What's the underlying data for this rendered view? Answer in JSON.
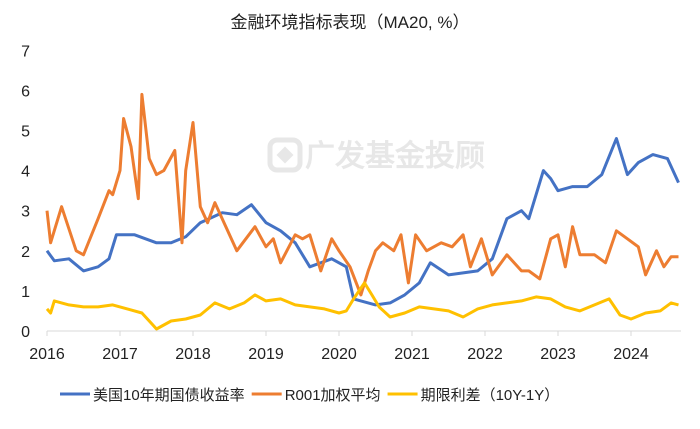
{
  "chart_data": {
    "type": "line",
    "title": "金融环境指标表现（MA20, %）",
    "watermark": "广发基金投顾",
    "xlabel": "",
    "ylabel": "",
    "xlim": [
      2016,
      2024.7
    ],
    "ylim": [
      0,
      7
    ],
    "x_ticks": [
      "2016",
      "2017",
      "2018",
      "2019",
      "2020",
      "2021",
      "2022",
      "2023",
      "2024"
    ],
    "y_ticks": [
      "0",
      "1",
      "2",
      "3",
      "4",
      "5",
      "6",
      "7"
    ],
    "grid": false,
    "legend_position": "bottom",
    "series": [
      {
        "name": "美国10年期国债收益率",
        "color": "#4472C4",
        "points": [
          [
            2016.0,
            2.0
          ],
          [
            2016.1,
            1.75
          ],
          [
            2016.3,
            1.8
          ],
          [
            2016.5,
            1.5
          ],
          [
            2016.7,
            1.6
          ],
          [
            2016.85,
            1.8
          ],
          [
            2016.95,
            2.4
          ],
          [
            2017.2,
            2.4
          ],
          [
            2017.5,
            2.2
          ],
          [
            2017.7,
            2.2
          ],
          [
            2017.9,
            2.35
          ],
          [
            2018.1,
            2.7
          ],
          [
            2018.4,
            2.95
          ],
          [
            2018.6,
            2.9
          ],
          [
            2018.8,
            3.15
          ],
          [
            2019.0,
            2.7
          ],
          [
            2019.2,
            2.5
          ],
          [
            2019.4,
            2.2
          ],
          [
            2019.6,
            1.6
          ],
          [
            2019.9,
            1.8
          ],
          [
            2020.1,
            1.6
          ],
          [
            2020.2,
            0.8
          ],
          [
            2020.5,
            0.65
          ],
          [
            2020.7,
            0.7
          ],
          [
            2020.9,
            0.9
          ],
          [
            2021.1,
            1.2
          ],
          [
            2021.25,
            1.7
          ],
          [
            2021.5,
            1.4
          ],
          [
            2021.7,
            1.45
          ],
          [
            2021.9,
            1.5
          ],
          [
            2022.1,
            1.8
          ],
          [
            2022.3,
            2.8
          ],
          [
            2022.5,
            3.0
          ],
          [
            2022.6,
            2.8
          ],
          [
            2022.8,
            4.0
          ],
          [
            2022.9,
            3.8
          ],
          [
            2023.0,
            3.5
          ],
          [
            2023.2,
            3.6
          ],
          [
            2023.4,
            3.6
          ],
          [
            2023.6,
            3.9
          ],
          [
            2023.8,
            4.8
          ],
          [
            2023.95,
            3.9
          ],
          [
            2024.1,
            4.2
          ],
          [
            2024.3,
            4.4
          ],
          [
            2024.5,
            4.3
          ],
          [
            2024.65,
            3.7
          ]
        ]
      },
      {
        "name": "R001加权平均",
        "color": "#ED7D31",
        "points": [
          [
            2016.0,
            3.0
          ],
          [
            2016.05,
            2.2
          ],
          [
            2016.2,
            3.1
          ],
          [
            2016.4,
            2.0
          ],
          [
            2016.5,
            1.9
          ],
          [
            2016.7,
            2.8
          ],
          [
            2016.85,
            3.5
          ],
          [
            2016.9,
            3.4
          ],
          [
            2017.0,
            4.0
          ],
          [
            2017.05,
            5.3
          ],
          [
            2017.15,
            4.6
          ],
          [
            2017.25,
            3.3
          ],
          [
            2017.3,
            5.9
          ],
          [
            2017.4,
            4.3
          ],
          [
            2017.5,
            3.9
          ],
          [
            2017.6,
            4.0
          ],
          [
            2017.75,
            4.5
          ],
          [
            2017.85,
            2.2
          ],
          [
            2017.9,
            4.0
          ],
          [
            2018.0,
            5.2
          ],
          [
            2018.1,
            3.1
          ],
          [
            2018.2,
            2.7
          ],
          [
            2018.3,
            3.2
          ],
          [
            2018.5,
            2.4
          ],
          [
            2018.6,
            2.0
          ],
          [
            2018.85,
            2.6
          ],
          [
            2019.0,
            2.1
          ],
          [
            2019.1,
            2.3
          ],
          [
            2019.2,
            1.7
          ],
          [
            2019.4,
            2.4
          ],
          [
            2019.5,
            2.3
          ],
          [
            2019.6,
            2.4
          ],
          [
            2019.75,
            1.5
          ],
          [
            2019.9,
            2.3
          ],
          [
            2020.0,
            2.0
          ],
          [
            2020.15,
            1.6
          ],
          [
            2020.3,
            0.9
          ],
          [
            2020.4,
            1.5
          ],
          [
            2020.5,
            2.0
          ],
          [
            2020.6,
            2.2
          ],
          [
            2020.75,
            2.0
          ],
          [
            2020.85,
            2.4
          ],
          [
            2020.95,
            1.2
          ],
          [
            2021.05,
            2.4
          ],
          [
            2021.2,
            2.0
          ],
          [
            2021.4,
            2.2
          ],
          [
            2021.55,
            2.1
          ],
          [
            2021.7,
            2.4
          ],
          [
            2021.8,
            1.6
          ],
          [
            2021.95,
            2.3
          ],
          [
            2022.1,
            1.4
          ],
          [
            2022.3,
            1.9
          ],
          [
            2022.5,
            1.5
          ],
          [
            2022.6,
            1.5
          ],
          [
            2022.75,
            1.3
          ],
          [
            2022.9,
            2.3
          ],
          [
            2023.0,
            2.4
          ],
          [
            2023.1,
            1.6
          ],
          [
            2023.2,
            2.6
          ],
          [
            2023.3,
            1.9
          ],
          [
            2023.5,
            1.9
          ],
          [
            2023.65,
            1.7
          ],
          [
            2023.8,
            2.5
          ],
          [
            2023.95,
            2.3
          ],
          [
            2024.1,
            2.1
          ],
          [
            2024.2,
            1.4
          ],
          [
            2024.35,
            2.0
          ],
          [
            2024.45,
            1.6
          ],
          [
            2024.55,
            1.85
          ],
          [
            2024.65,
            1.85
          ]
        ]
      },
      {
        "name": "期限利差（10Y-1Y）",
        "color": "#FFC000",
        "points": [
          [
            2016.0,
            0.55
          ],
          [
            2016.05,
            0.45
          ],
          [
            2016.1,
            0.75
          ],
          [
            2016.3,
            0.65
          ],
          [
            2016.5,
            0.6
          ],
          [
            2016.7,
            0.6
          ],
          [
            2016.9,
            0.65
          ],
          [
            2017.1,
            0.55
          ],
          [
            2017.3,
            0.45
          ],
          [
            2017.45,
            0.15
          ],
          [
            2017.5,
            0.05
          ],
          [
            2017.7,
            0.25
          ],
          [
            2017.9,
            0.3
          ],
          [
            2018.1,
            0.4
          ],
          [
            2018.3,
            0.7
          ],
          [
            2018.5,
            0.55
          ],
          [
            2018.7,
            0.7
          ],
          [
            2018.85,
            0.9
          ],
          [
            2019.0,
            0.75
          ],
          [
            2019.2,
            0.8
          ],
          [
            2019.4,
            0.65
          ],
          [
            2019.6,
            0.6
          ],
          [
            2019.8,
            0.55
          ],
          [
            2020.0,
            0.45
          ],
          [
            2020.1,
            0.5
          ],
          [
            2020.2,
            0.8
          ],
          [
            2020.35,
            1.2
          ],
          [
            2020.45,
            0.9
          ],
          [
            2020.55,
            0.6
          ],
          [
            2020.7,
            0.35
          ],
          [
            2020.9,
            0.45
          ],
          [
            2021.1,
            0.6
          ],
          [
            2021.3,
            0.55
          ],
          [
            2021.5,
            0.5
          ],
          [
            2021.7,
            0.35
          ],
          [
            2021.9,
            0.55
          ],
          [
            2022.1,
            0.65
          ],
          [
            2022.3,
            0.7
          ],
          [
            2022.5,
            0.75
          ],
          [
            2022.7,
            0.85
          ],
          [
            2022.9,
            0.8
          ],
          [
            2023.1,
            0.6
          ],
          [
            2023.3,
            0.5
          ],
          [
            2023.5,
            0.65
          ],
          [
            2023.7,
            0.8
          ],
          [
            2023.85,
            0.4
          ],
          [
            2024.0,
            0.3
          ],
          [
            2024.2,
            0.45
          ],
          [
            2024.4,
            0.5
          ],
          [
            2024.55,
            0.7
          ],
          [
            2024.65,
            0.65
          ]
        ]
      }
    ]
  }
}
